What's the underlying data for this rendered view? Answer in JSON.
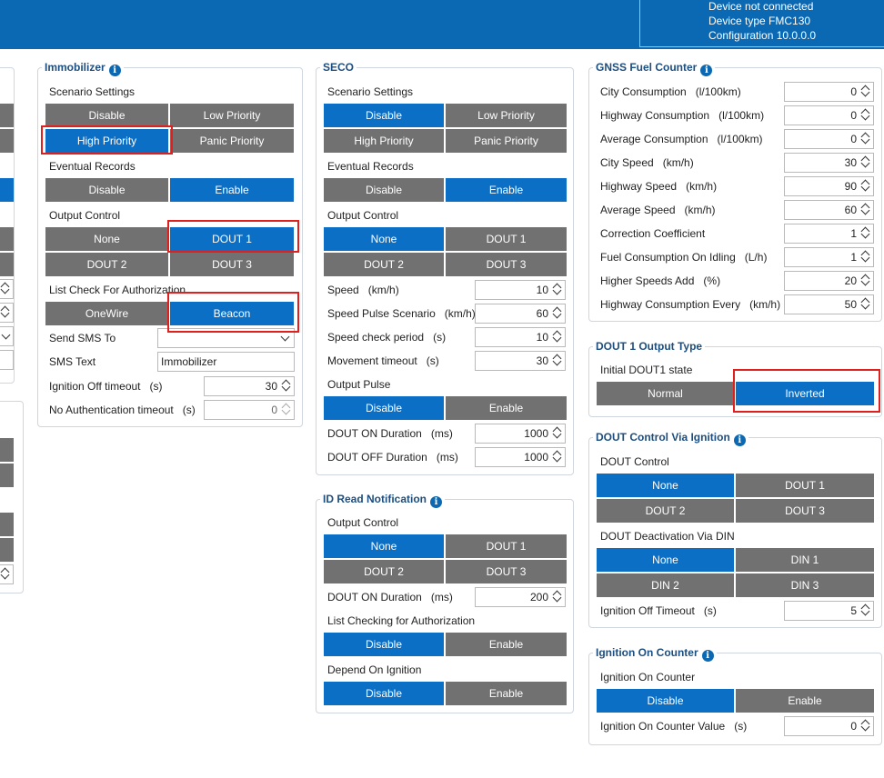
{
  "header": {
    "device_status": "Device not connected",
    "device_type": "Device type  FMC130",
    "configuration": "Configuration  10.0.0.0"
  },
  "immobilizer": {
    "title": "Immobilizer",
    "scenario_settings": "Scenario Settings",
    "scenario": {
      "disable": "Disable",
      "low": "Low Priority",
      "high": "High Priority",
      "panic": "Panic Priority",
      "selected": "High Priority"
    },
    "eventual_records": "Eventual Records",
    "eventual": {
      "disable": "Disable",
      "enable": "Enable",
      "selected": "Enable"
    },
    "output_control": "Output Control",
    "output": {
      "none": "None",
      "dout1": "DOUT 1",
      "dout2": "DOUT 2",
      "dout3": "DOUT 3",
      "selected": "DOUT 1"
    },
    "list_check": "List Check For Authorization",
    "auth": {
      "onewire": "OneWire",
      "beacon": "Beacon",
      "selected": "Beacon"
    },
    "send_sms_to": "Send SMS To",
    "send_sms_value": "",
    "sms_text": "SMS Text",
    "sms_text_value": "Immobilizer",
    "ignition_off_timeout": "Ignition Off timeout",
    "ignition_off_timeout_unit": "(s)",
    "ignition_off_timeout_value": "30",
    "no_auth_timeout": "No Authentication timeout",
    "no_auth_timeout_unit": "(s)",
    "no_auth_timeout_value": "0"
  },
  "seco": {
    "title": "SECO",
    "scenario_settings": "Scenario Settings",
    "scenario": {
      "disable": "Disable",
      "low": "Low Priority",
      "high": "High Priority",
      "panic": "Panic Priority",
      "selected": "Disable"
    },
    "eventual_records": "Eventual Records",
    "eventual": {
      "disable": "Disable",
      "enable": "Enable",
      "selected": "Enable"
    },
    "output_control": "Output Control",
    "output": {
      "none": "None",
      "dout1": "DOUT 1",
      "dout2": "DOUT 2",
      "dout3": "DOUT 3",
      "selected": "None"
    },
    "speed": {
      "label": "Speed",
      "unit": "(km/h)",
      "value": "10"
    },
    "speed_pulse": {
      "label": "Speed Pulse Scenario",
      "unit": "(km/h)",
      "value": "60"
    },
    "speed_check": {
      "label": "Speed check period",
      "unit": "(s)",
      "value": "10"
    },
    "movement_timeout": {
      "label": "Movement timeout",
      "unit": "(s)",
      "value": "30"
    },
    "output_pulse": "Output Pulse",
    "pulse": {
      "disable": "Disable",
      "enable": "Enable",
      "selected": "Disable"
    },
    "dout_on": {
      "label": "DOUT ON Duration",
      "unit": "(ms)",
      "value": "1000"
    },
    "dout_off": {
      "label": "DOUT OFF Duration",
      "unit": "(ms)",
      "value": "1000"
    }
  },
  "id_read": {
    "title": "ID Read Notification",
    "output_control": "Output Control",
    "output": {
      "none": "None",
      "dout1": "DOUT 1",
      "dout2": "DOUT 2",
      "dout3": "DOUT 3",
      "selected": "None"
    },
    "dout_on": {
      "label": "DOUT ON Duration",
      "unit": "(ms)",
      "value": "200"
    },
    "list_checking": "List Checking for Authorization",
    "list": {
      "disable": "Disable",
      "enable": "Enable",
      "selected": "Disable"
    },
    "depend_on_ignition": "Depend On Ignition",
    "depend": {
      "disable": "Disable",
      "enable": "Enable",
      "selected": "Disable"
    }
  },
  "gnss_fuel": {
    "title": "GNSS Fuel Counter",
    "rows": [
      {
        "label": "City Consumption",
        "unit": "(l/100km)",
        "value": "0"
      },
      {
        "label": "Highway Consumption",
        "unit": "(l/100km)",
        "value": "0"
      },
      {
        "label": "Average Consumption",
        "unit": "(l/100km)",
        "value": "0"
      },
      {
        "label": "City Speed",
        "unit": "(km/h)",
        "value": "30"
      },
      {
        "label": "Highway Speed",
        "unit": "(km/h)",
        "value": "90"
      },
      {
        "label": "Average Speed",
        "unit": "(km/h)",
        "value": "60"
      },
      {
        "label": "Correction Coefficient",
        "unit": "",
        "value": "1"
      },
      {
        "label": "Fuel Consumption On Idling",
        "unit": "(L/h)",
        "value": "1"
      },
      {
        "label": "Higher Speeds Add",
        "unit": "(%)",
        "value": "20"
      },
      {
        "label": "Highway Consumption Every",
        "unit": "(km/h)",
        "value": "50"
      }
    ]
  },
  "dout1_output": {
    "title": "DOUT 1 Output Type",
    "initial_state": "Initial DOUT1 state",
    "state": {
      "normal": "Normal",
      "inverted": "Inverted",
      "selected": "Inverted"
    }
  },
  "dout_ignition": {
    "title": "DOUT Control Via Ignition",
    "dout_control": "DOUT Control",
    "control": {
      "none": "None",
      "dout1": "DOUT 1",
      "dout2": "DOUT 2",
      "dout3": "DOUT 3",
      "selected": "None"
    },
    "deactivation": "DOUT Deactivation Via DIN",
    "din": {
      "none": "None",
      "din1": "DIN 1",
      "din2": "DIN 2",
      "din3": "DIN 3",
      "selected": "None"
    },
    "ignition_off": {
      "label": "Ignition Off Timeout",
      "unit": "(s)",
      "value": "5"
    }
  },
  "ignition_counter": {
    "title": "Ignition On Counter",
    "label": "Ignition On Counter",
    "state": {
      "disable": "Disable",
      "enable": "Enable",
      "selected": "Disable"
    },
    "value_label": "Ignition On Counter Value",
    "value_unit": "(s)",
    "value": "0"
  },
  "colors": {
    "accent": "#0b6fc6",
    "inactive": "#717171",
    "header": "#0b69b3",
    "highlight": "#e01f1f"
  }
}
